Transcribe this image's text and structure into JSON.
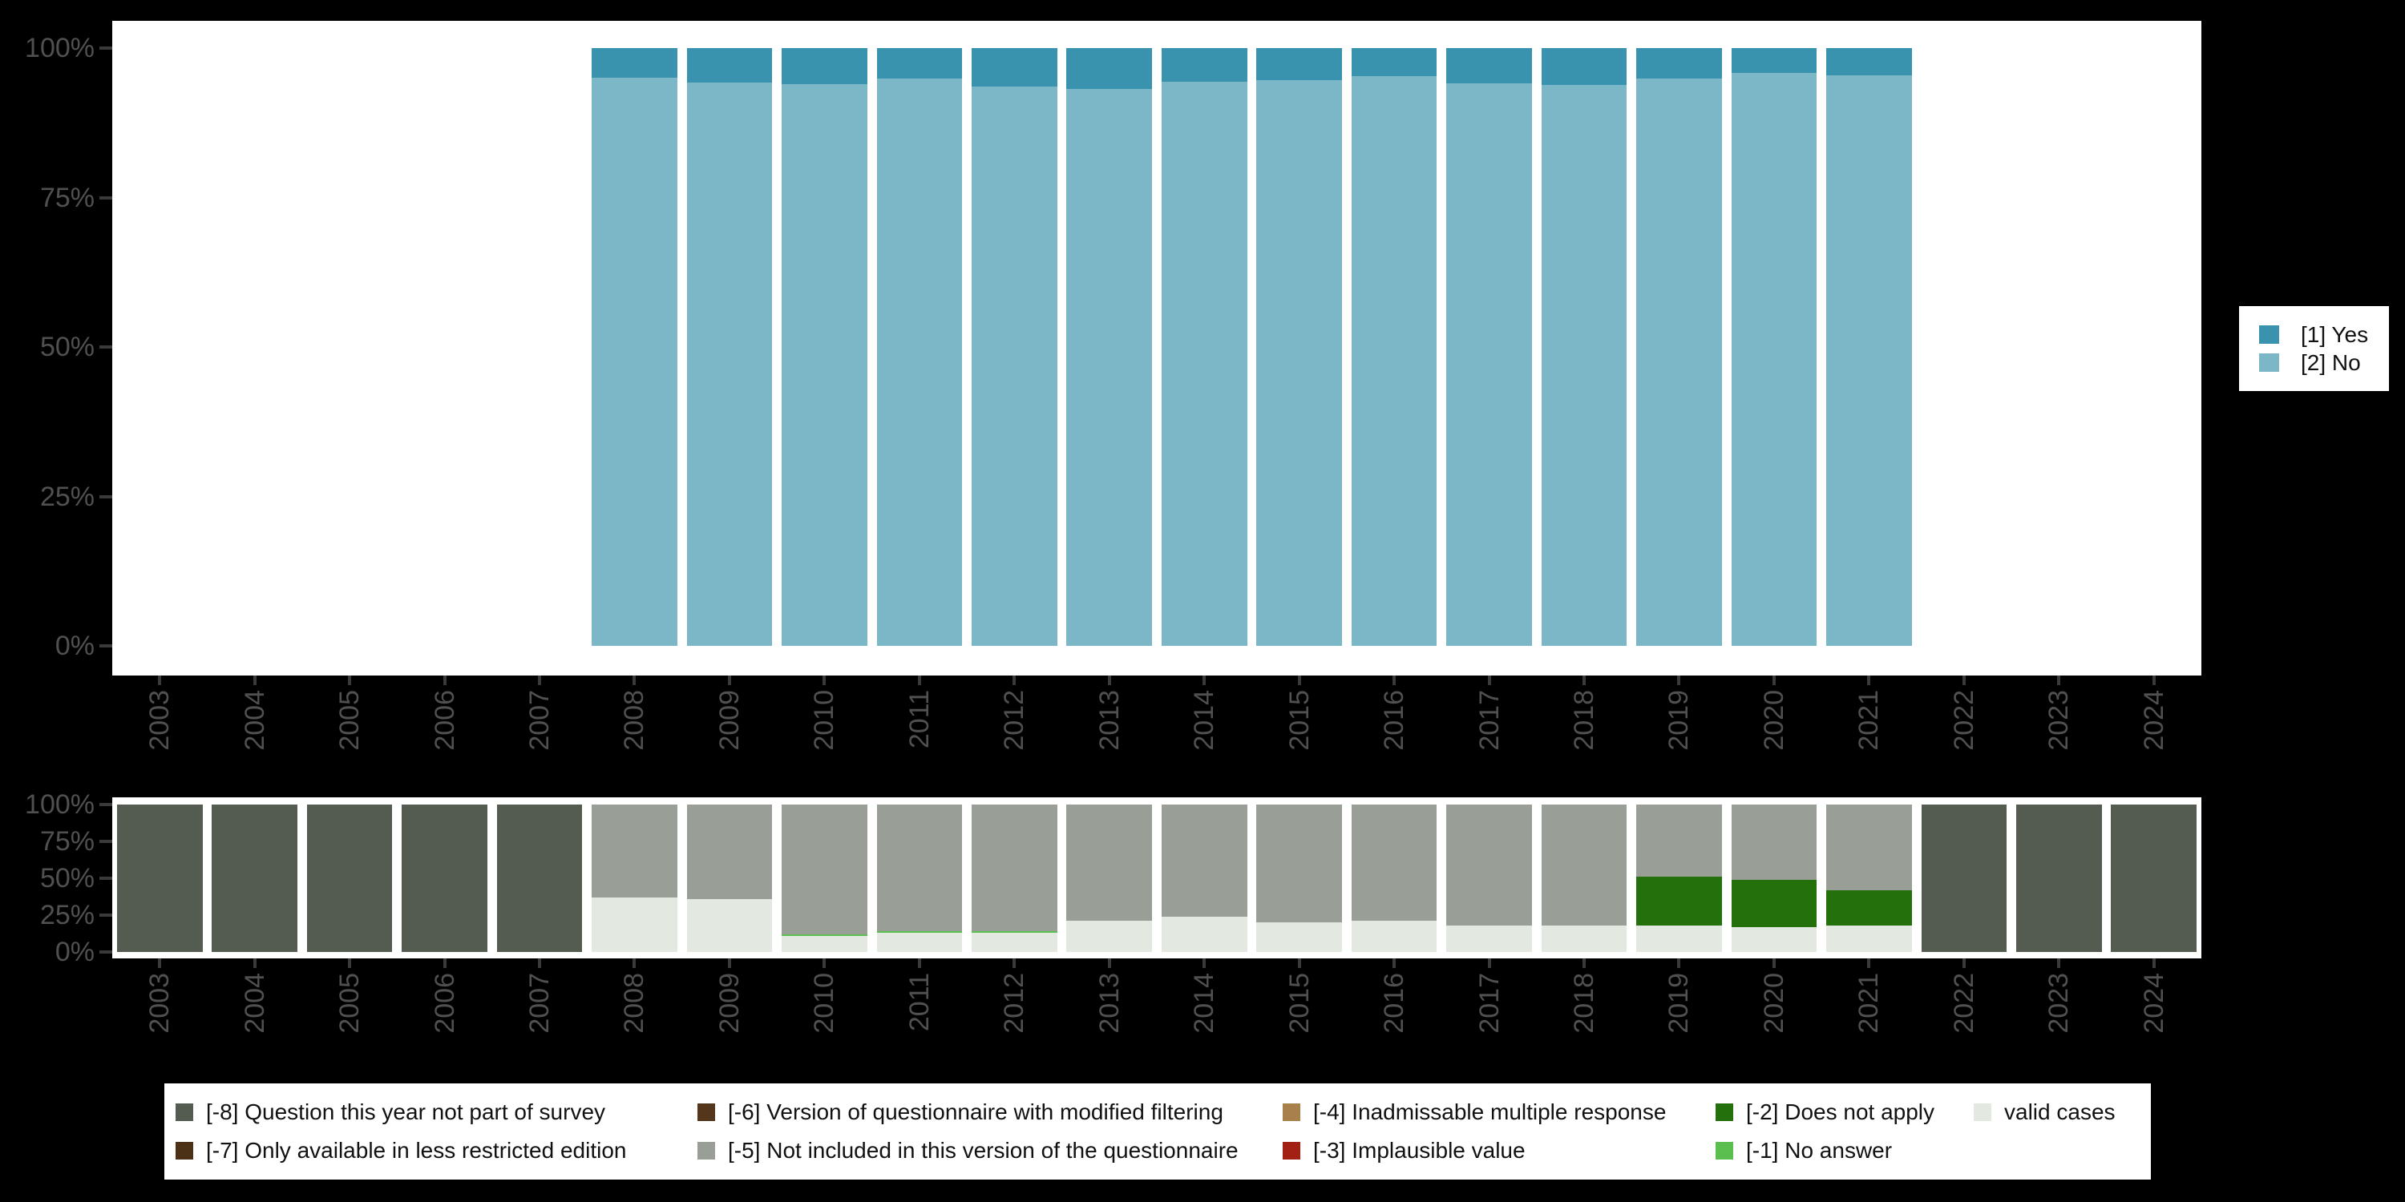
{
  "page": {
    "background": "#000000",
    "plot_background": "#ffffff",
    "axis_text_color": "#505050",
    "tick_color": "#3a3a3a"
  },
  "chart_data": [
    {
      "id": "responses-by-year",
      "type": "bar",
      "stacked": true,
      "units": "percent",
      "grid": false,
      "legend_position": "right",
      "ylim": [
        0,
        100
      ],
      "y_ticks": [
        "100%",
        "75%",
        "50%",
        "25%",
        "0%"
      ],
      "categories": [
        "2003",
        "2004",
        "2005",
        "2006",
        "2007",
        "2008",
        "2009",
        "2010",
        "2011",
        "2012",
        "2013",
        "2014",
        "2015",
        "2016",
        "2017",
        "2018",
        "2019",
        "2020",
        "2021",
        "2022",
        "2023",
        "2024"
      ],
      "series": [
        {
          "key": "yes",
          "name": "[1] Yes",
          "color": "#3a93ae",
          "values": [
            null,
            null,
            null,
            null,
            null,
            4.9,
            5.7,
            6.0,
            5.1,
            6.4,
            6.8,
            5.6,
            5.3,
            4.7,
            5.9,
            6.2,
            5.1,
            4.2,
            4.5,
            null,
            null,
            null
          ]
        },
        {
          "key": "no",
          "name": "[2] No",
          "color": "#7cb7c7",
          "values": [
            null,
            null,
            null,
            null,
            null,
            95.1,
            94.3,
            94.0,
            94.9,
            93.6,
            93.2,
            94.4,
            94.7,
            95.3,
            94.1,
            93.8,
            94.9,
            95.8,
            95.5,
            null,
            null,
            null
          ]
        }
      ]
    },
    {
      "id": "missing-values-by-year",
      "type": "bar",
      "stacked": true,
      "units": "percent",
      "grid": false,
      "legend_position": "bottom",
      "ylim": [
        0,
        100
      ],
      "y_ticks": [
        "100%",
        "75%",
        "50%",
        "25%",
        "0%"
      ],
      "categories": [
        "2003",
        "2004",
        "2005",
        "2006",
        "2007",
        "2008",
        "2009",
        "2010",
        "2011",
        "2012",
        "2013",
        "2014",
        "2015",
        "2016",
        "2017",
        "2018",
        "2019",
        "2020",
        "2021",
        "2022",
        "2023",
        "2024"
      ],
      "legend_columns": [
        [
          0,
          1
        ],
        [
          2,
          3
        ],
        [
          4,
          5
        ],
        [
          6,
          7
        ],
        [
          8
        ]
      ],
      "series": [
        {
          "key": "na-8",
          "name": "[-8] Question this year not part of survey",
          "color": "#545c52",
          "values": [
            100,
            100,
            100,
            100,
            100,
            0,
            0,
            0,
            0,
            0,
            0,
            0,
            0,
            0,
            0,
            0,
            0,
            0,
            0,
            100,
            100,
            100
          ]
        },
        {
          "key": "na-7",
          "name": "[-7] Only available in less restricted edition",
          "color": "#4c3117",
          "values": [
            0,
            0,
            0,
            0,
            0,
            0,
            0,
            0,
            0,
            0,
            0,
            0,
            0,
            0,
            0,
            0,
            0,
            0,
            0,
            0,
            0,
            0
          ]
        },
        {
          "key": "na-6",
          "name": "[-6] Version of questionnaire with modified filtering",
          "color": "#53361b",
          "values": [
            0,
            0,
            0,
            0,
            0,
            0,
            0,
            0,
            0,
            0,
            0,
            0,
            0,
            0,
            0,
            0,
            0,
            0,
            0,
            0,
            0,
            0
          ]
        },
        {
          "key": "na-5",
          "name": "[-5] Not included in this version of the questionnaire",
          "color": "#999f96",
          "values": [
            0,
            0,
            0,
            0,
            0,
            63,
            64,
            88,
            86,
            86,
            79,
            76,
            80,
            79,
            82,
            82,
            49,
            51,
            58,
            0,
            0,
            0
          ]
        },
        {
          "key": "na-4",
          "name": "[-4] Inadmissable multiple response",
          "color": "#a8804b",
          "values": [
            0,
            0,
            0,
            0,
            0,
            0,
            0,
            0,
            0,
            0,
            0,
            0,
            0,
            0,
            0,
            0,
            0,
            0,
            0,
            0,
            0,
            0
          ]
        },
        {
          "key": "na-3",
          "name": "[-3] Implausible value",
          "color": "#a32015",
          "values": [
            0,
            0,
            0,
            0,
            0,
            0,
            0,
            0,
            0,
            0,
            0,
            0,
            0,
            0,
            0,
            0,
            0,
            0,
            0,
            0,
            0,
            0
          ]
        },
        {
          "key": "na-2",
          "name": "[-2] Does not apply",
          "color": "#24700c",
          "values": [
            0,
            0,
            0,
            0,
            0,
            0,
            0,
            0,
            0,
            0,
            0,
            0,
            0,
            0,
            0,
            0,
            33,
            32,
            24,
            0,
            0,
            0
          ]
        },
        {
          "key": "na-1",
          "name": "[-1] No answer",
          "color": "#5abf4f",
          "values": [
            0,
            0,
            0,
            0,
            0,
            0,
            0,
            1,
            1,
            1,
            0,
            0,
            0,
            0,
            0,
            0,
            0,
            0,
            0,
            0,
            0,
            0
          ]
        },
        {
          "key": "valid",
          "name": "valid cases",
          "color": "#e3e8e1",
          "values": [
            0,
            0,
            0,
            0,
            0,
            37,
            36,
            11,
            13,
            13,
            21,
            24,
            20,
            21,
            18,
            18,
            18,
            17,
            18,
            0,
            0,
            0
          ]
        }
      ]
    }
  ]
}
